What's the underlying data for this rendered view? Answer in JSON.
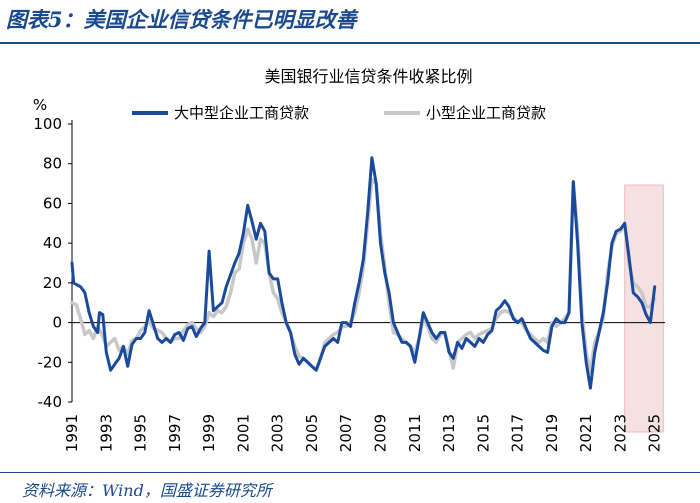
{
  "figure": {
    "title": "图表5：美国企业信贷条件已明显改善",
    "source": "资料来源：Wind，国盛证券研究所"
  },
  "chart_data": {
    "type": "line",
    "title": "美国银行业信贷条件收紧比例",
    "ylabel": "%",
    "xlabel": "",
    "xlim": [
      1991,
      2025.6
    ],
    "ylim": [
      -40,
      100
    ],
    "yticks": [
      -40,
      -20,
      0,
      20,
      40,
      60,
      80,
      100
    ],
    "xticks": [
      "1991",
      "1993",
      "1995",
      "1997",
      "1999",
      "2001",
      "2003",
      "2005",
      "2007",
      "2009",
      "2011",
      "2013",
      "2015",
      "2017",
      "2019",
      "2021",
      "2023",
      "2025"
    ],
    "legend_position": "top",
    "highlight_region": {
      "x_start": 2023.25,
      "x_end": 2025.5,
      "color": "#f5e1e1"
    },
    "series": [
      {
        "name": "大中型企业工商贷款",
        "color": "#1a4a9c",
        "points": [
          [
            1991.0,
            30
          ],
          [
            1991.1,
            20
          ],
          [
            1991.5,
            18
          ],
          [
            1991.75,
            15
          ],
          [
            1992.0,
            5
          ],
          [
            1992.25,
            -2
          ],
          [
            1992.5,
            -5
          ],
          [
            1992.6,
            5
          ],
          [
            1992.8,
            4
          ],
          [
            1993.0,
            -15
          ],
          [
            1993.25,
            -24
          ],
          [
            1993.5,
            -21
          ],
          [
            1993.75,
            -18
          ],
          [
            1994.0,
            -12
          ],
          [
            1994.25,
            -22
          ],
          [
            1994.5,
            -11
          ],
          [
            1994.75,
            -8
          ],
          [
            1995.0,
            -8
          ],
          [
            1995.25,
            -5
          ],
          [
            1995.5,
            6
          ],
          [
            1995.75,
            -1
          ],
          [
            1996.0,
            -8
          ],
          [
            1996.25,
            -10
          ],
          [
            1996.5,
            -8
          ],
          [
            1996.75,
            -10
          ],
          [
            1997.0,
            -6
          ],
          [
            1997.25,
            -5
          ],
          [
            1997.5,
            -9
          ],
          [
            1997.75,
            -3
          ],
          [
            1998.0,
            -2
          ],
          [
            1998.25,
            -7
          ],
          [
            1998.5,
            -3
          ],
          [
            1998.75,
            0
          ],
          [
            1999.0,
            36
          ],
          [
            1999.25,
            6
          ],
          [
            1999.5,
            8
          ],
          [
            1999.75,
            10
          ],
          [
            2000.0,
            18
          ],
          [
            2000.25,
            24
          ],
          [
            2000.5,
            30
          ],
          [
            2000.75,
            35
          ],
          [
            2001.0,
            45
          ],
          [
            2001.25,
            59
          ],
          [
            2001.5,
            51
          ],
          [
            2001.75,
            42
          ],
          [
            2002.0,
            50
          ],
          [
            2002.25,
            46
          ],
          [
            2002.5,
            25
          ],
          [
            2002.75,
            22
          ],
          [
            2003.0,
            22
          ],
          [
            2003.25,
            10
          ],
          [
            2003.5,
            0
          ],
          [
            2003.75,
            -5
          ],
          [
            2004.0,
            -16
          ],
          [
            2004.25,
            -21
          ],
          [
            2004.5,
            -18
          ],
          [
            2004.75,
            -20
          ],
          [
            2005.0,
            -22
          ],
          [
            2005.25,
            -24
          ],
          [
            2005.5,
            -18
          ],
          [
            2005.75,
            -12
          ],
          [
            2006.0,
            -10
          ],
          [
            2006.25,
            -8
          ],
          [
            2006.5,
            -10
          ],
          [
            2006.75,
            0
          ],
          [
            2007.0,
            0
          ],
          [
            2007.25,
            -2
          ],
          [
            2007.5,
            10
          ],
          [
            2007.75,
            20
          ],
          [
            2008.0,
            32
          ],
          [
            2008.25,
            55
          ],
          [
            2008.5,
            83
          ],
          [
            2008.75,
            70
          ],
          [
            2009.0,
            40
          ],
          [
            2009.25,
            25
          ],
          [
            2009.5,
            15
          ],
          [
            2009.75,
            0
          ],
          [
            2010.0,
            -5
          ],
          [
            2010.25,
            -10
          ],
          [
            2010.5,
            -10
          ],
          [
            2010.75,
            -12
          ],
          [
            2011.0,
            -20
          ],
          [
            2011.25,
            -8
          ],
          [
            2011.5,
            5
          ],
          [
            2011.75,
            0
          ],
          [
            2012.0,
            -5
          ],
          [
            2012.25,
            -8
          ],
          [
            2012.5,
            -5
          ],
          [
            2012.75,
            -5
          ],
          [
            2013.0,
            -15
          ],
          [
            2013.25,
            -18
          ],
          [
            2013.5,
            -10
          ],
          [
            2013.75,
            -13
          ],
          [
            2014.0,
            -8
          ],
          [
            2014.25,
            -10
          ],
          [
            2014.5,
            -12
          ],
          [
            2014.75,
            -8
          ],
          [
            2015.0,
            -10
          ],
          [
            2015.25,
            -6
          ],
          [
            2015.5,
            -4
          ],
          [
            2015.75,
            6
          ],
          [
            2016.0,
            8
          ],
          [
            2016.25,
            11
          ],
          [
            2016.5,
            8
          ],
          [
            2016.75,
            2
          ],
          [
            2017.0,
            0
          ],
          [
            2017.25,
            2
          ],
          [
            2017.5,
            -3
          ],
          [
            2017.75,
            -8
          ],
          [
            2018.0,
            -10
          ],
          [
            2018.25,
            -12
          ],
          [
            2018.5,
            -14
          ],
          [
            2018.75,
            -15
          ],
          [
            2019.0,
            -2
          ],
          [
            2019.25,
            2
          ],
          [
            2019.5,
            0
          ],
          [
            2019.75,
            0
          ],
          [
            2020.0,
            5
          ],
          [
            2020.25,
            71
          ],
          [
            2020.5,
            40
          ],
          [
            2020.75,
            0
          ],
          [
            2021.0,
            -20
          ],
          [
            2021.25,
            -33
          ],
          [
            2021.5,
            -15
          ],
          [
            2021.75,
            -5
          ],
          [
            2022.0,
            5
          ],
          [
            2022.25,
            20
          ],
          [
            2022.5,
            40
          ],
          [
            2022.75,
            46
          ],
          [
            2023.0,
            47
          ],
          [
            2023.25,
            50
          ],
          [
            2023.5,
            33
          ],
          [
            2023.75,
            15
          ],
          [
            2024.0,
            13
          ],
          [
            2024.25,
            10
          ],
          [
            2024.5,
            4
          ],
          [
            2024.75,
            0
          ],
          [
            2025.0,
            18
          ]
        ]
      },
      {
        "name": "小型企业工商贷款",
        "color": "#c8c8c8",
        "points": [
          [
            1991.0,
            10
          ],
          [
            1991.25,
            9
          ],
          [
            1991.5,
            2
          ],
          [
            1991.75,
            -6
          ],
          [
            1992.0,
            -4
          ],
          [
            1992.25,
            -8
          ],
          [
            1992.5,
            -2
          ],
          [
            1992.75,
            -6
          ],
          [
            1993.0,
            -12
          ],
          [
            1993.25,
            -10
          ],
          [
            1993.5,
            -8
          ],
          [
            1993.75,
            -14
          ],
          [
            1994.0,
            -12
          ],
          [
            1994.25,
            -16
          ],
          [
            1994.5,
            -9
          ],
          [
            1994.75,
            -8
          ],
          [
            1995.0,
            -4
          ],
          [
            1995.25,
            -2
          ],
          [
            1995.5,
            1
          ],
          [
            1995.75,
            -3
          ],
          [
            1996.0,
            -4
          ],
          [
            1996.25,
            -5
          ],
          [
            1996.5,
            -8
          ],
          [
            1996.75,
            -10
          ],
          [
            1997.0,
            -8
          ],
          [
            1997.25,
            -8
          ],
          [
            1997.5,
            -4
          ],
          [
            1997.75,
            -1
          ],
          [
            1998.0,
            0
          ],
          [
            1998.25,
            -3
          ],
          [
            1998.5,
            -5
          ],
          [
            1998.75,
            -2
          ],
          [
            1999.0,
            5
          ],
          [
            1999.25,
            3
          ],
          [
            1999.5,
            6
          ],
          [
            1999.75,
            5
          ],
          [
            2000.0,
            8
          ],
          [
            2000.25,
            15
          ],
          [
            2000.5,
            25
          ],
          [
            2000.75,
            27
          ],
          [
            2001.0,
            40
          ],
          [
            2001.25,
            47
          ],
          [
            2001.5,
            42
          ],
          [
            2001.75,
            30
          ],
          [
            2002.0,
            42
          ],
          [
            2002.25,
            40
          ],
          [
            2002.5,
            25
          ],
          [
            2002.75,
            15
          ],
          [
            2003.0,
            12
          ],
          [
            2003.25,
            5
          ],
          [
            2003.5,
            0
          ],
          [
            2003.75,
            -5
          ],
          [
            2004.0,
            -12
          ],
          [
            2004.25,
            -17
          ],
          [
            2004.5,
            -18
          ],
          [
            2004.75,
            -20
          ],
          [
            2005.0,
            -22
          ],
          [
            2005.25,
            -24
          ],
          [
            2005.5,
            -18
          ],
          [
            2005.75,
            -10
          ],
          [
            2006.0,
            -8
          ],
          [
            2006.25,
            -6
          ],
          [
            2006.5,
            -5
          ],
          [
            2006.75,
            -2
          ],
          [
            2007.0,
            -2
          ],
          [
            2007.25,
            0
          ],
          [
            2007.5,
            5
          ],
          [
            2007.75,
            15
          ],
          [
            2008.0,
            28
          ],
          [
            2008.25,
            50
          ],
          [
            2008.5,
            72
          ],
          [
            2008.75,
            70
          ],
          [
            2009.0,
            45
          ],
          [
            2009.25,
            28
          ],
          [
            2009.5,
            10
          ],
          [
            2009.75,
            -5
          ],
          [
            2010.0,
            -6
          ],
          [
            2010.25,
            -8
          ],
          [
            2010.5,
            -10
          ],
          [
            2010.75,
            -12
          ],
          [
            2011.0,
            -15
          ],
          [
            2011.25,
            -8
          ],
          [
            2011.5,
            2
          ],
          [
            2011.75,
            -2
          ],
          [
            2012.0,
            -8
          ],
          [
            2012.25,
            -10
          ],
          [
            2012.5,
            -6
          ],
          [
            2012.75,
            -5
          ],
          [
            2013.0,
            -14
          ],
          [
            2013.25,
            -23
          ],
          [
            2013.5,
            -10
          ],
          [
            2013.75,
            -8
          ],
          [
            2014.0,
            -6
          ],
          [
            2014.25,
            -5
          ],
          [
            2014.5,
            -8
          ],
          [
            2014.75,
            -6
          ],
          [
            2015.0,
            -5
          ],
          [
            2015.25,
            -4
          ],
          [
            2015.5,
            -3
          ],
          [
            2015.75,
            2
          ],
          [
            2016.0,
            5
          ],
          [
            2016.25,
            6
          ],
          [
            2016.5,
            5
          ],
          [
            2016.75,
            3
          ],
          [
            2017.0,
            0
          ],
          [
            2017.25,
            0
          ],
          [
            2017.5,
            -4
          ],
          [
            2017.75,
            -6
          ],
          [
            2018.0,
            -8
          ],
          [
            2018.25,
            -10
          ],
          [
            2018.5,
            -8
          ],
          [
            2018.75,
            -10
          ],
          [
            2019.0,
            0
          ],
          [
            2019.25,
            -2
          ],
          [
            2019.5,
            0
          ],
          [
            2019.75,
            2
          ],
          [
            2020.0,
            5
          ],
          [
            2020.25,
            70
          ],
          [
            2020.5,
            45
          ],
          [
            2020.75,
            5
          ],
          [
            2021.0,
            -15
          ],
          [
            2021.25,
            -25
          ],
          [
            2021.5,
            -10
          ],
          [
            2021.75,
            -5
          ],
          [
            2022.0,
            2
          ],
          [
            2022.25,
            25
          ],
          [
            2022.5,
            38
          ],
          [
            2022.75,
            45
          ],
          [
            2023.0,
            46
          ],
          [
            2023.25,
            49
          ],
          [
            2023.5,
            30
          ],
          [
            2023.75,
            20
          ],
          [
            2024.0,
            18
          ],
          [
            2024.25,
            15
          ],
          [
            2024.5,
            8
          ],
          [
            2024.75,
            8
          ],
          [
            2025.0,
            12
          ]
        ]
      }
    ]
  }
}
